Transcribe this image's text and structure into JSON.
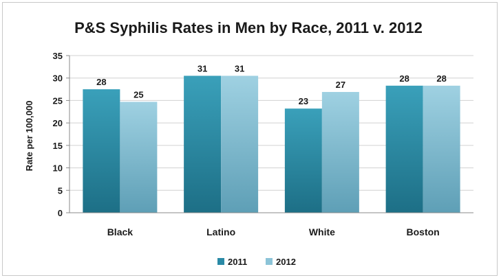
{
  "chart_data": {
    "type": "bar",
    "title": "P&S Syphilis Rates in Men by Race, 2011 v. 2012",
    "xlabel": "",
    "ylabel": "Rate per 100,000",
    "categories": [
      "Black",
      "Latino",
      "White",
      "Boston"
    ],
    "series": [
      {
        "name": "2011",
        "values": [
          28,
          31,
          23,
          28
        ],
        "labels": [
          "28",
          "31",
          "23",
          "28"
        ],
        "color": "#2a8aa6",
        "plot_values": [
          27.5,
          30.5,
          23.2,
          28.3
        ]
      },
      {
        "name": "2012",
        "values": [
          25,
          31,
          27,
          28
        ],
        "labels": [
          "25",
          "31",
          "27",
          "28"
        ],
        "color": "#8cc4d8",
        "plot_values": [
          24.7,
          30.5,
          26.9,
          28.3
        ]
      }
    ],
    "ylim": [
      0,
      35
    ],
    "yticks": [
      0,
      5,
      10,
      15,
      20,
      25,
      30,
      35
    ],
    "grid": true,
    "legend_position": "bottom"
  }
}
